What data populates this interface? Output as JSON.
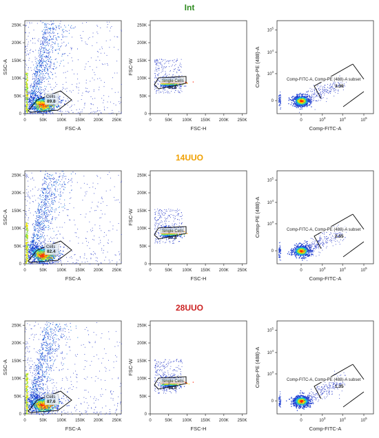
{
  "groups": [
    {
      "title": "Int",
      "title_color": "#2e8b1f",
      "plots": {
        "cells": {
          "xlabel": "FSC-A",
          "ylabel": "SSC-A",
          "gate_name": "Cells",
          "gate_value": "89.8"
        },
        "singlets": {
          "xlabel": "FSC-H",
          "ylabel": "FSC-W",
          "gate_name": "Single Cells",
          "gate_value": "94.6"
        },
        "subset": {
          "xlabel": "Comp-FITC-A",
          "ylabel": "Comp-PE (488)-A",
          "gate_name": "Comp-FITC-A, Comp-PE (488)-A subset",
          "gate_value": "3.39"
        }
      }
    },
    {
      "title": "14UUO",
      "title_color": "#f0a000",
      "plots": {
        "cells": {
          "xlabel": "FSC-A",
          "ylabel": "SSC-A",
          "gate_name": "Cells",
          "gate_value": "82.4"
        },
        "singlets": {
          "xlabel": "FSC-H",
          "ylabel": "FSC-W",
          "gate_name": "Single Cells",
          "gate_value": "97.8"
        },
        "subset": {
          "xlabel": "Comp-FITC-A",
          "ylabel": "Comp-PE (488)-A",
          "gate_name": "Comp-FITC-A, Comp-PE (488)-A subset",
          "gate_value": "2.55"
        }
      }
    },
    {
      "title": "28UUO",
      "title_color": "#cc2222",
      "plots": {
        "cells": {
          "xlabel": "FSC-A",
          "ylabel": "SSC-A",
          "gate_name": "Cells",
          "gate_value": "87.6"
        },
        "singlets": {
          "xlabel": "FSC-H",
          "ylabel": "FSC-W",
          "gate_name": "Single Cells",
          "gate_value": "98.6"
        },
        "subset": {
          "xlabel": "Comp-FITC-A",
          "ylabel": "Comp-PE (488)-A",
          "gate_name": "Comp-FITC-A, Comp-PE (488)-A subset",
          "gate_value": "1.35"
        }
      }
    }
  ],
  "axes": {
    "linear_ticks": [
      "0",
      "50K",
      "100K",
      "150K",
      "200K",
      "250K"
    ],
    "linear_range": [
      0,
      262144
    ],
    "log_ticks_x": [
      "0",
      "10^3",
      "10^4",
      "10^5"
    ],
    "log_ticks_y": [
      "0",
      "10^3",
      "10^4",
      "10^5"
    ]
  },
  "chart_data": [
    {
      "type": "scatter",
      "title": "Int",
      "xlabel": "FSC-A",
      "ylabel": "SSC-A",
      "xlim": [
        0,
        262144
      ],
      "ylim": [
        0,
        262144
      ],
      "gates": [
        {
          "name": "Cells",
          "percent": 89.8
        }
      ]
    },
    {
      "type": "scatter",
      "title": "Int",
      "xlabel": "FSC-H",
      "ylabel": "FSC-W",
      "xlim": [
        0,
        262144
      ],
      "ylim": [
        0,
        262144
      ],
      "gates": [
        {
          "name": "Single Cells",
          "percent": 94.6
        }
      ]
    },
    {
      "type": "scatter",
      "title": "Int",
      "xlabel": "Comp-FITC-A",
      "ylabel": "Comp-PE (488)-A",
      "scale": "biexponential",
      "gates": [
        {
          "name": "Comp-FITC-A, Comp-PE (488)-A subset",
          "percent": 3.39
        }
      ]
    },
    {
      "type": "scatter",
      "title": "14UUO",
      "xlabel": "FSC-A",
      "ylabel": "SSC-A",
      "xlim": [
        0,
        262144
      ],
      "ylim": [
        0,
        262144
      ],
      "gates": [
        {
          "name": "Cells",
          "percent": 82.4
        }
      ]
    },
    {
      "type": "scatter",
      "title": "14UUO",
      "xlabel": "FSC-H",
      "ylabel": "FSC-W",
      "xlim": [
        0,
        262144
      ],
      "ylim": [
        0,
        262144
      ],
      "gates": [
        {
          "name": "Single Cells",
          "percent": 97.8
        }
      ]
    },
    {
      "type": "scatter",
      "title": "14UUO",
      "xlabel": "Comp-FITC-A",
      "ylabel": "Comp-PE (488)-A",
      "scale": "biexponential",
      "gates": [
        {
          "name": "Comp-FITC-A, Comp-PE (488)-A subset",
          "percent": 2.55
        }
      ]
    },
    {
      "type": "scatter",
      "title": "28UUO",
      "xlabel": "FSC-A",
      "ylabel": "SSC-A",
      "xlim": [
        0,
        262144
      ],
      "ylim": [
        0,
        262144
      ],
      "gates": [
        {
          "name": "Cells",
          "percent": 87.6
        }
      ]
    },
    {
      "type": "scatter",
      "title": "28UUO",
      "xlabel": "FSC-H",
      "ylabel": "FSC-W",
      "xlim": [
        0,
        262144
      ],
      "ylim": [
        0,
        262144
      ],
      "gates": [
        {
          "name": "Single Cells",
          "percent": 98.6
        }
      ]
    },
    {
      "type": "scatter",
      "title": "28UUO",
      "xlabel": "Comp-FITC-A",
      "ylabel": "Comp-PE (488)-A",
      "scale": "biexponential",
      "gates": [
        {
          "name": "Comp-FITC-A, Comp-PE (488)-A subset",
          "percent": 1.35
        }
      ]
    }
  ]
}
